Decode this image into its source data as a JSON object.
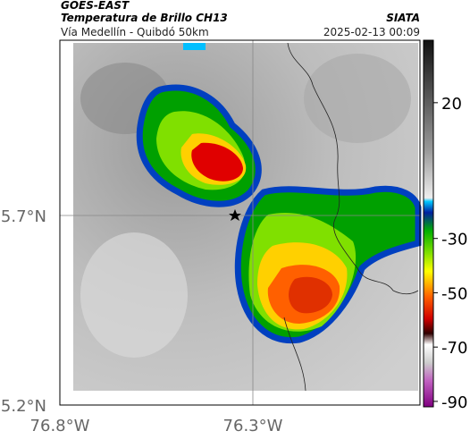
{
  "header": {
    "source": "GOES-EAST",
    "title": "Temperatura de Brillo CH13",
    "brand": "SIATA",
    "subtitle": "Vía Medellín - Quibdó 50km",
    "timestamp": "2025-02-13 00:09"
  },
  "axes": {
    "x_labels": [
      "76.8°W",
      "76.3°W"
    ],
    "y_labels": [
      "5.7°N",
      "5.2°N"
    ]
  },
  "colorbar": {
    "lim": [
      -92,
      43
    ],
    "ticks": [
      20,
      -30,
      -50,
      -70,
      -90
    ]
  }
}
